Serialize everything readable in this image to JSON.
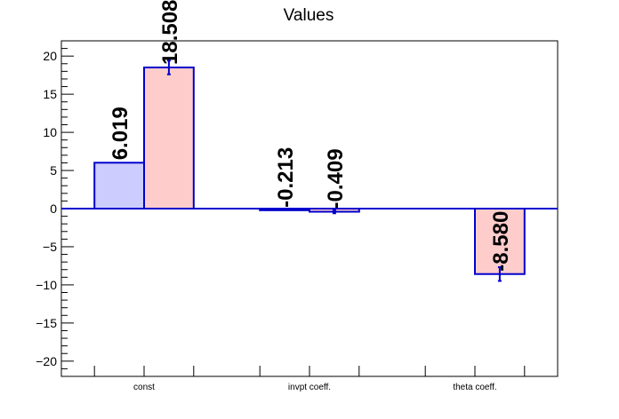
{
  "chart_data": {
    "type": "bar",
    "title": "Values",
    "categories": [
      "const",
      "invpt coeff.",
      "theta coeff."
    ],
    "ylim": [
      -22,
      22
    ],
    "yticks": [
      -20,
      -15,
      -10,
      -5,
      0,
      5,
      10,
      15,
      20
    ],
    "grid": false,
    "series": [
      {
        "color": "#ccccff",
        "edge_color": "#0000cc",
        "values": [
          6.019,
          -0.213,
          null
        ],
        "errors": [
          0,
          0,
          null
        ],
        "labels": [
          "6.019",
          "-0.213",
          ""
        ]
      },
      {
        "color": "#ffcccc",
        "edge_color": "#0000cc",
        "values": [
          18.508,
          -0.409,
          -8.58
        ],
        "errors": [
          0.9,
          0.2,
          0.9
        ],
        "labels": [
          "18.508",
          "-0.409",
          "-8.580"
        ]
      }
    ]
  }
}
